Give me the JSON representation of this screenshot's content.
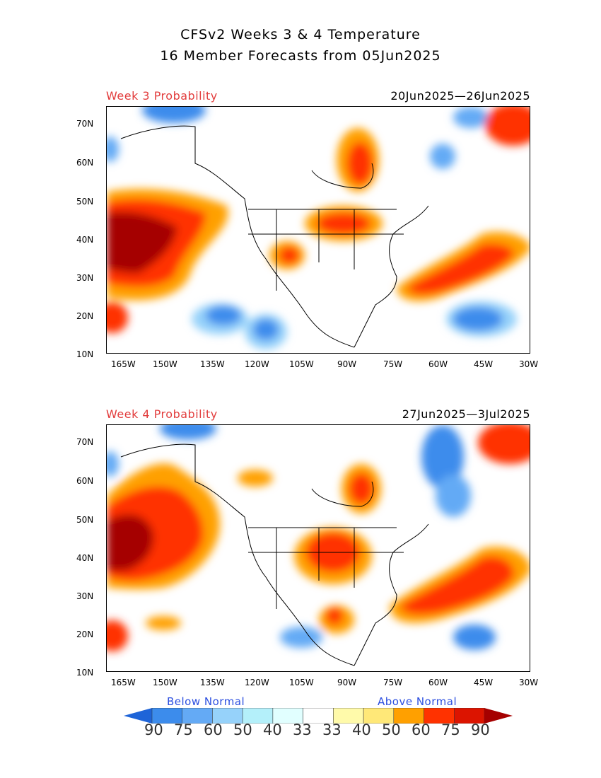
{
  "title_line1": "CFSv2 Weeks 3 & 4 Temperature",
  "title_line2": "16 Member Forecasts from 05Jun2025",
  "panels": [
    {
      "label": "Week 3 Probability",
      "dates": "20Jun2025—26Jun2025"
    },
    {
      "label": "Week 4 Probability",
      "dates": "27Jun2025—3Jul2025"
    }
  ],
  "lat_ticks": [
    "70N",
    "60N",
    "50N",
    "40N",
    "30N",
    "20N",
    "10N"
  ],
  "lon_ticks": [
    "165W",
    "150W",
    "135W",
    "120W",
    "105W",
    "90W",
    "75W",
    "60W",
    "45W",
    "30W"
  ],
  "legend": {
    "below_label": "Below Normal",
    "above_label": "Above Normal",
    "values": [
      "90",
      "75",
      "60",
      "50",
      "40",
      "33",
      "33",
      "40",
      "50",
      "60",
      "75",
      "90"
    ],
    "colors": [
      "#1e64d8",
      "#3c8cec",
      "#64aaf5",
      "#96d2fa",
      "#b4f0fa",
      "#e1ffff",
      "#ffffff",
      "#fffaaa",
      "#ffe878",
      "#ffa000",
      "#ff3200",
      "#dc1400",
      "#a50000"
    ]
  }
}
